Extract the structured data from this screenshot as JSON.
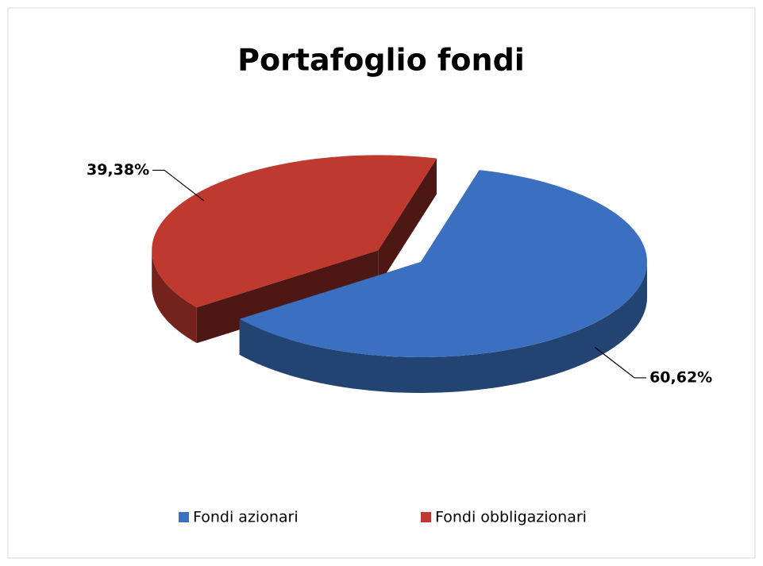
{
  "chart_data": {
    "type": "pie",
    "title": "Portafoglio fondi",
    "categories": [
      "Fondi azionari",
      "Fondi obbligazionari"
    ],
    "values": [
      60.62,
      39.38
    ],
    "value_labels": [
      "60,62%",
      "39,38%"
    ],
    "colors": [
      "#3b6fbf",
      "#c0392f"
    ],
    "legend": "bottom"
  }
}
